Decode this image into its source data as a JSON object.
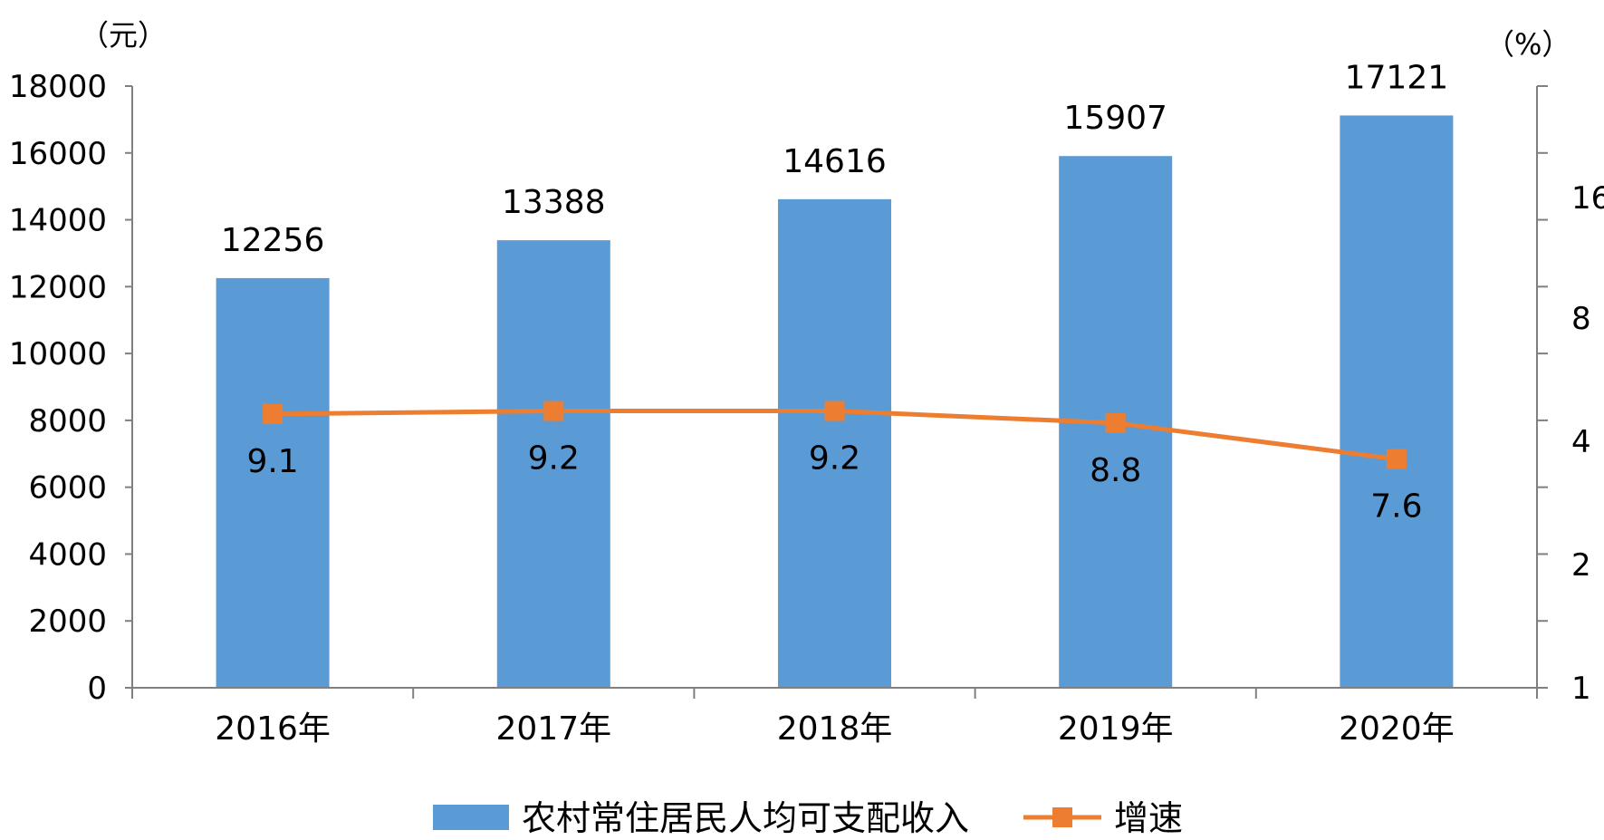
{
  "chart_data": {
    "type": "bar",
    "categories": [
      "2016年",
      "2017年",
      "2018年",
      "2019年",
      "2020年"
    ],
    "series": [
      {
        "name": "农村常住居民人均可支配收入",
        "type": "bar",
        "axis": "left",
        "values": [
          12256,
          13388,
          14616,
          15907,
          17121
        ]
      },
      {
        "name": "增速",
        "type": "line",
        "axis": "right",
        "values": [
          9.1,
          9.2,
          9.2,
          8.8,
          7.6
        ]
      }
    ],
    "left_axis": {
      "unit_label": "（元）",
      "ylim": [
        0,
        18000
      ],
      "ticks": [
        0,
        2000,
        4000,
        6000,
        8000,
        10000,
        12000,
        14000,
        16000,
        18000
      ]
    },
    "right_axis": {
      "unit_label": "（%）",
      "ticks_visible": [
        "1",
        "2",
        "4",
        "8",
        "16"
      ]
    },
    "colors": {
      "bar": "#5B9BD5",
      "line": "#ED7D31",
      "axis": "#808080"
    },
    "legend_position": "bottom",
    "grid": false
  }
}
